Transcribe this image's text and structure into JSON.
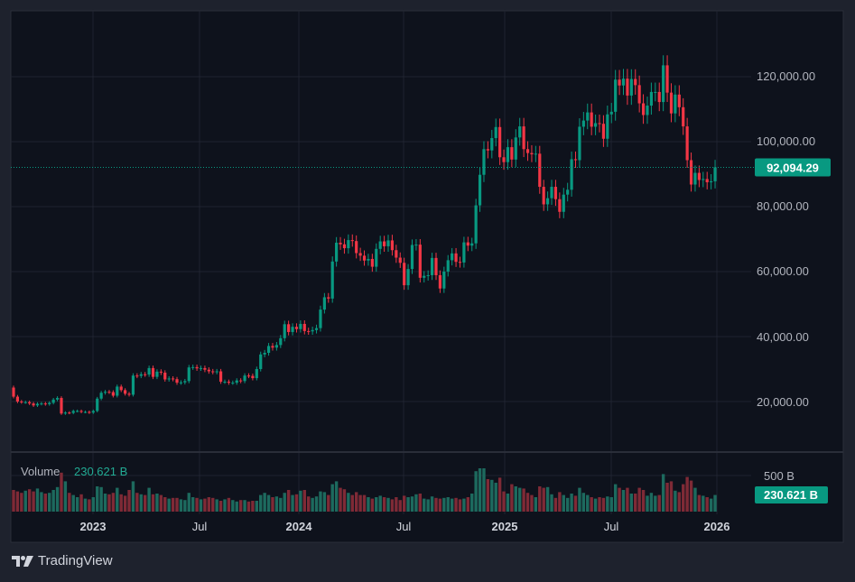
{
  "chart_data": {
    "type": "candlestick",
    "interval": "weekly",
    "first_week": "2022-08-15",
    "first_open": 24300,
    "closes": [
      21500,
      20000,
      19800,
      19800,
      19400,
      18800,
      19300,
      19400,
      19200,
      19600,
      20600,
      21100,
      16300,
      16600,
      16500,
      17100,
      17100,
      16800,
      16800,
      16600,
      17100,
      20900,
      22700,
      23000,
      22900,
      21800,
      24600,
      23500,
      22400,
      22100,
      28000,
      27900,
      28400,
      28300,
      30300,
      27600,
      29200,
      28900,
      26800,
      27100,
      26900,
      25800,
      25900,
      26300,
      30500,
      30600,
      30200,
      30300,
      29800,
      29300,
      29100,
      29300,
      26100,
      26100,
      25800,
      25800,
      26500,
      26300,
      28000,
      27900,
      27200,
      30000,
      34500,
      35000,
      37100,
      36600,
      37400,
      39500,
      43800,
      41400,
      43000,
      42300,
      43900,
      41700,
      41600,
      42000,
      42600,
      48300,
      52100,
      51700,
      63100,
      68900,
      68400,
      67200,
      69700,
      69400,
      65700,
      64900,
      63400,
      63900,
      61500,
      67000,
      69300,
      67800,
      69600,
      66600,
      64300,
      62700,
      55800,
      60800,
      68200,
      68300,
      58100,
      58700,
      58900,
      64200,
      58900,
      54800,
      60000,
      63500,
      65600,
      63000,
      62800,
      69000,
      68000,
      68700,
      80400,
      89800,
      97700,
      97300,
      101100,
      104500,
      95200,
      93700,
      98300,
      94500,
      101300,
      104700,
      97700,
      96500,
      96100,
      96300,
      86100,
      80700,
      82600,
      86100,
      82300,
      78400,
      83700,
      85200,
      94600,
      94300,
      104600,
      106500,
      109000,
      104600,
      105700,
      105500,
      100900,
      108400,
      109200,
      119100,
      117300,
      119400,
      114200,
      119300,
      117400,
      111800,
      108200,
      111100,
      115300,
      115300,
      112200,
      123500,
      115100,
      108700,
      114500,
      110600,
      104700,
      94300,
      86800,
      90400,
      88200,
      88500,
      87500,
      87800,
      92094.29
    ],
    "volume_billions": [
      300,
      280,
      260,
      290,
      310,
      280,
      320,
      270,
      250,
      260,
      300,
      340,
      540,
      420,
      260,
      230,
      200,
      240,
      180,
      170,
      200,
      350,
      340,
      250,
      240,
      260,
      330,
      240,
      220,
      300,
      420,
      260,
      240,
      230,
      330,
      240,
      250,
      230,
      200,
      180,
      190,
      190,
      170,
      160,
      260,
      200,
      190,
      170,
      180,
      200,
      190,
      170,
      150,
      170,
      190,
      160,
      140,
      160,
      160,
      140,
      150,
      150,
      230,
      260,
      230,
      200,
      210,
      190,
      260,
      300,
      230,
      240,
      290,
      300,
      210,
      190,
      210,
      280,
      270,
      230,
      380,
      420,
      330,
      310,
      260,
      230,
      270,
      230,
      230,
      200,
      180,
      200,
      220,
      200,
      190,
      170,
      200,
      160,
      220,
      200,
      210,
      240,
      250,
      180,
      170,
      210,
      190,
      180,
      190,
      200,
      180,
      190,
      170,
      180,
      200,
      250,
      560,
      600,
      600,
      450,
      440,
      400,
      470,
      280,
      250,
      380,
      350,
      330,
      320,
      260,
      230,
      200,
      350,
      330,
      340,
      240,
      190,
      270,
      230,
      190,
      250,
      220,
      330,
      260,
      230,
      200,
      180,
      200,
      190,
      210,
      200,
      380,
      330,
      300,
      330,
      250,
      250,
      330,
      300,
      220,
      260,
      220,
      230,
      520,
      400,
      420,
      290,
      270,
      380,
      480,
      430,
      330,
      230,
      220,
      200,
      180,
      230.621
    ],
    "y_ticks": [
      "120,000.00",
      "100,000.00",
      "80,000.00",
      "60,000.00",
      "40,000.00",
      "20,000.00"
    ],
    "y_tick_values": [
      120000,
      100000,
      80000,
      60000,
      40000,
      20000
    ],
    "x_ticks": [
      "2023",
      "Jul",
      "2024",
      "Jul",
      "2025",
      "Jul",
      "2026"
    ],
    "last_price": "92,094.29",
    "volume_label": "Volume",
    "volume_value": "230.621 B",
    "volume_tick": "500 B",
    "grid": true,
    "colors": {
      "up": "#089981",
      "down": "#f23645",
      "up_volume": "#1d6a5e",
      "down_volume": "#7f2a36",
      "background": "#0e121c"
    }
  },
  "branding": {
    "name": "TradingView"
  }
}
